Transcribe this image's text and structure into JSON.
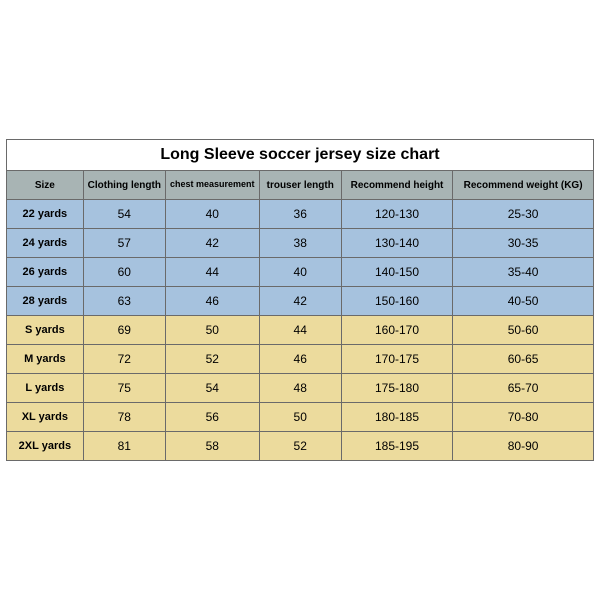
{
  "title": "Long Sleeve soccer jersey size chart",
  "colors": {
    "header_bg": "#a8b4b4",
    "row_blue": "#a6c2de",
    "row_yellow": "#ecdb9d",
    "border": "#6a6a6a",
    "title_bg": "#ffffff"
  },
  "table": {
    "columns": [
      {
        "label": "Size"
      },
      {
        "label": "Clothing length"
      },
      {
        "label": "chest measurement"
      },
      {
        "label": "trouser length"
      },
      {
        "label": "Recommend height"
      },
      {
        "label": "Recommend weight (KG)"
      }
    ],
    "rows": [
      {
        "group": "blue",
        "cells": [
          "22 yards",
          "54",
          "40",
          "36",
          "120-130",
          "25-30"
        ]
      },
      {
        "group": "blue",
        "cells": [
          "24 yards",
          "57",
          "42",
          "38",
          "130-140",
          "30-35"
        ]
      },
      {
        "group": "blue",
        "cells": [
          "26 yards",
          "60",
          "44",
          "40",
          "140-150",
          "35-40"
        ]
      },
      {
        "group": "blue",
        "cells": [
          "28 yards",
          "63",
          "46",
          "42",
          "150-160",
          "40-50"
        ]
      },
      {
        "group": "yellow",
        "cells": [
          "S yards",
          "69",
          "50",
          "44",
          "160-170",
          "50-60"
        ]
      },
      {
        "group": "yellow",
        "cells": [
          "M yards",
          "72",
          "52",
          "46",
          "170-175",
          "60-65"
        ]
      },
      {
        "group": "yellow",
        "cells": [
          "L yards",
          "75",
          "54",
          "48",
          "175-180",
          "65-70"
        ]
      },
      {
        "group": "yellow",
        "cells": [
          "XL yards",
          "78",
          "56",
          "50",
          "180-185",
          "70-80"
        ]
      },
      {
        "group": "yellow",
        "cells": [
          "2XL yards",
          "81",
          "58",
          "52",
          "185-195",
          "80-90"
        ]
      }
    ]
  }
}
